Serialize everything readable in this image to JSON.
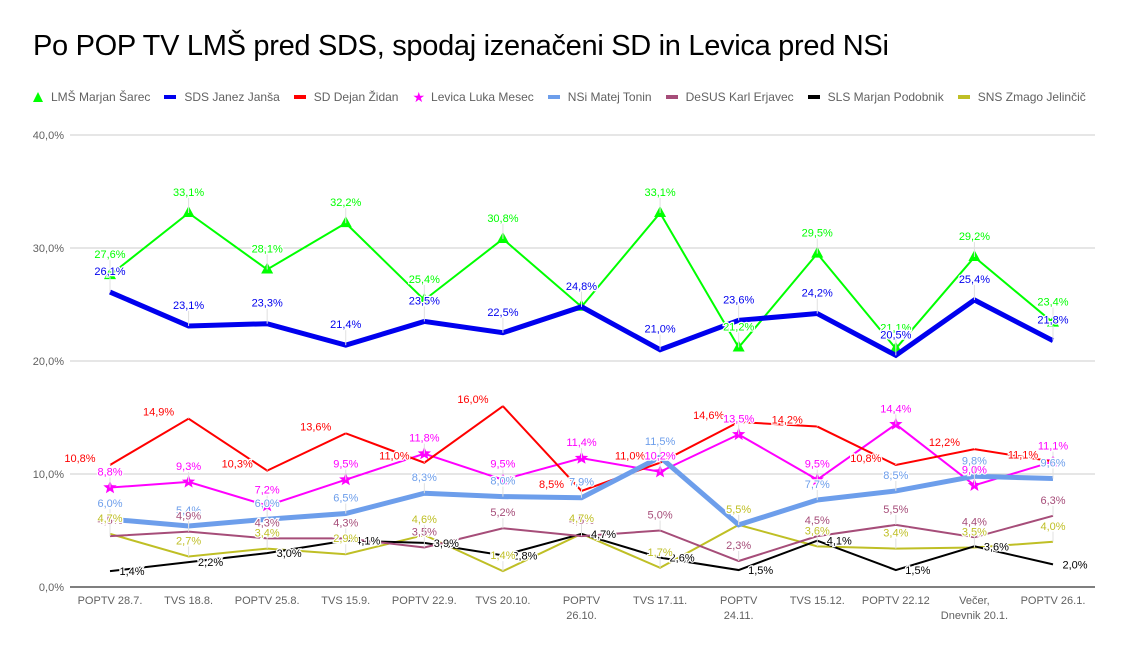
{
  "chart_data": {
    "type": "line",
    "title": "Po POP TV LMŠ pred SDS, spodaj izenačeni SD in Levica pred NSi",
    "xlabel": "",
    "ylabel": "",
    "ylim": [
      0,
      40
    ],
    "yticks": [
      "0,0%",
      "10,0%",
      "20,0%",
      "30,0%",
      "40,0%"
    ],
    "ytick_values": [
      0,
      10,
      20,
      30,
      40
    ],
    "grid": true,
    "legend_position": "top",
    "categories": [
      "POPTV 28.7.",
      "TVS 18.8.",
      "POPTV 25.8.",
      "TVS 15.9.",
      "POPTV 22.9.",
      "TVS 20.10.",
      "POPTV 26.10.",
      "TVS 17.11.",
      "POPTV 24.11.",
      "TVS 15.12.",
      "POPTV 22.12",
      "Večer, Dnevnik 20.1.",
      "POPTV 26.1."
    ],
    "category_lines": [
      [
        "POPTV 28.7."
      ],
      [
        "TVS 18.8."
      ],
      [
        "POPTV 25.8."
      ],
      [
        "TVS 15.9."
      ],
      [
        "POPTV 22.9."
      ],
      [
        "TVS 20.10."
      ],
      [
        "POPTV",
        "26.10."
      ],
      [
        "TVS 17.11."
      ],
      [
        "POPTV",
        "24.11."
      ],
      [
        "TVS 15.12."
      ],
      [
        "POPTV 22.12"
      ],
      [
        "Večer,",
        "Dnevnik 20.1."
      ],
      [
        "POPTV 26.1."
      ]
    ],
    "series": [
      {
        "name": "LMŠ Marjan Šarec",
        "color": "#00ff00",
        "marker": "triangle",
        "values": [
          27.6,
          33.1,
          28.1,
          32.2,
          25.4,
          30.8,
          24.8,
          33.1,
          21.2,
          29.5,
          21.1,
          29.2,
          23.4
        ]
      },
      {
        "name": "SDS Janez Janša",
        "color": "#0000ee",
        "marker": "none",
        "thick": true,
        "values": [
          26.1,
          23.1,
          23.3,
          21.4,
          23.5,
          22.5,
          24.8,
          21.0,
          23.6,
          24.2,
          20.5,
          25.4,
          21.8
        ]
      },
      {
        "name": "SD Dejan Židan",
        "color": "#ff0000",
        "marker": "none",
        "values": [
          10.8,
          14.9,
          10.3,
          13.6,
          11.0,
          16.0,
          8.5,
          11.0,
          14.6,
          14.2,
          10.8,
          12.2,
          11.1
        ]
      },
      {
        "name": "Levica Luka Mesec",
        "color": "#ff00ff",
        "marker": "star",
        "values": [
          8.8,
          9.3,
          7.2,
          9.5,
          11.8,
          9.5,
          11.4,
          10.2,
          13.5,
          9.5,
          14.4,
          9.0,
          11.1
        ]
      },
      {
        "name": "NSi Matej Tonin",
        "color": "#6d9eeb",
        "marker": "none",
        "thick": true,
        "values": [
          6.0,
          5.4,
          6.0,
          6.5,
          8.3,
          8.0,
          7.9,
          11.5,
          5.5,
          7.7,
          8.5,
          9.8,
          9.6
        ]
      },
      {
        "name": "DeSUS Karl Erjavec",
        "color": "#a64d79",
        "marker": "none",
        "values": [
          4.5,
          4.9,
          4.3,
          4.3,
          3.5,
          5.2,
          4.5,
          5.0,
          2.3,
          4.5,
          5.5,
          4.4,
          6.3
        ]
      },
      {
        "name": "SLS Marjan Podobnik",
        "color": "#000000",
        "marker": "none",
        "values": [
          1.4,
          2.2,
          3.0,
          4.1,
          3.9,
          2.8,
          4.7,
          2.6,
          1.5,
          4.1,
          1.5,
          3.6,
          2.0
        ]
      },
      {
        "name": "SNS Zmago Jelinčič",
        "color": "#bfbf25",
        "marker": "none",
        "values": [
          4.7,
          2.7,
          3.4,
          2.9,
          4.6,
          1.4,
          4.7,
          1.7,
          5.5,
          3.6,
          3.4,
          3.5,
          4.0
        ]
      }
    ]
  },
  "legend": {
    "items": [
      {
        "label": "LMŠ Marjan Šarec",
        "icon": "triangle-icon",
        "color": "#00ff00"
      },
      {
        "label": "SDS Janez Janša",
        "icon": "line-swatch-icon",
        "color": "#0000ee"
      },
      {
        "label": "SD Dejan Židan",
        "icon": "line-swatch-icon",
        "color": "#ff0000"
      },
      {
        "label": "Levica Luka Mesec",
        "icon": "star-icon",
        "color": "#ff00ff"
      },
      {
        "label": "NSi Matej Tonin",
        "icon": "line-swatch-icon",
        "color": "#6d9eeb"
      },
      {
        "label": "DeSUS Karl Erjavec",
        "icon": "line-swatch-icon",
        "color": "#a64d79"
      },
      {
        "label": "SLS Marjan Podobnik",
        "icon": "line-swatch-icon",
        "color": "#000000"
      },
      {
        "label": "SNS Zmago Jelinčič",
        "icon": "line-swatch-icon",
        "color": "#bfbf25"
      }
    ]
  }
}
